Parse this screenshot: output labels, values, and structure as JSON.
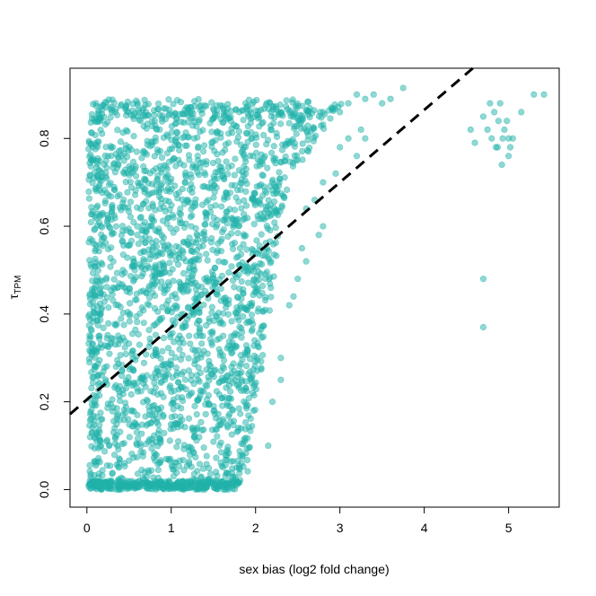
{
  "chart_data": {
    "type": "scatter",
    "xlabel": "sex bias (log2 fold change)",
    "ylabel_main": "τ",
    "ylabel_sub": "TPM",
    "xlim": [
      -0.2,
      5.6
    ],
    "ylim": [
      -0.04,
      0.96
    ],
    "xticks": [
      0,
      1,
      2,
      3,
      4,
      5
    ],
    "yticks": [
      0.0,
      0.2,
      0.4,
      0.6,
      0.8
    ],
    "xtick_labels": [
      "0",
      "1",
      "2",
      "3",
      "4",
      "5"
    ],
    "ytick_labels": [
      "0.0",
      "0.2",
      "0.4",
      "0.6",
      "0.8"
    ],
    "point_color": "#20B2AA",
    "point_opacity": 0.5,
    "grid": false,
    "legend": "none",
    "fit_line": {
      "style": "dashed",
      "color": "#000000",
      "intercept": 0.205,
      "slope": 0.165
    },
    "sparse_points": [
      [
        3.75,
        0.915
      ],
      [
        3.6,
        0.89
      ],
      [
        3.5,
        0.88
      ],
      [
        3.4,
        0.9
      ],
      [
        3.3,
        0.89
      ],
      [
        3.2,
        0.9
      ],
      [
        3.1,
        0.88
      ],
      [
        3.0,
        0.86
      ],
      [
        2.9,
        0.87
      ],
      [
        2.8,
        0.86
      ],
      [
        3.25,
        0.82
      ],
      [
        3.3,
        0.8
      ],
      [
        3.1,
        0.8
      ],
      [
        3.0,
        0.78
      ],
      [
        3.2,
        0.76
      ],
      [
        2.95,
        0.72
      ],
      [
        2.8,
        0.7
      ],
      [
        2.7,
        0.66
      ],
      [
        2.6,
        0.64
      ],
      [
        2.8,
        0.6
      ],
      [
        2.75,
        0.58
      ],
      [
        2.6,
        0.52
      ],
      [
        2.5,
        0.48
      ],
      [
        2.4,
        0.42
      ],
      [
        2.3,
        0.3
      ],
      [
        2.2,
        0.2
      ],
      [
        2.15,
        0.1
      ],
      [
        2.3,
        0.25
      ],
      [
        2.45,
        0.44
      ],
      [
        2.55,
        0.55
      ],
      [
        4.55,
        0.82
      ],
      [
        4.6,
        0.79
      ],
      [
        4.7,
        0.85
      ],
      [
        4.75,
        0.82
      ],
      [
        4.8,
        0.8
      ],
      [
        4.85,
        0.78
      ],
      [
        4.9,
        0.88
      ],
      [
        4.88,
        0.84
      ],
      [
        4.93,
        0.8
      ],
      [
        4.95,
        0.82
      ],
      [
        5.0,
        0.8
      ],
      [
        5.02,
        0.78
      ],
      [
        5.0,
        0.76
      ],
      [
        4.98,
        0.84
      ],
      [
        5.05,
        0.8
      ],
      [
        4.83,
        0.86
      ],
      [
        4.78,
        0.88
      ],
      [
        5.15,
        0.86
      ],
      [
        5.3,
        0.9
      ],
      [
        5.42,
        0.9
      ],
      [
        4.7,
        0.48
      ],
      [
        4.7,
        0.37
      ],
      [
        4.87,
        0.78
      ],
      [
        4.92,
        0.74
      ]
    ]
  }
}
